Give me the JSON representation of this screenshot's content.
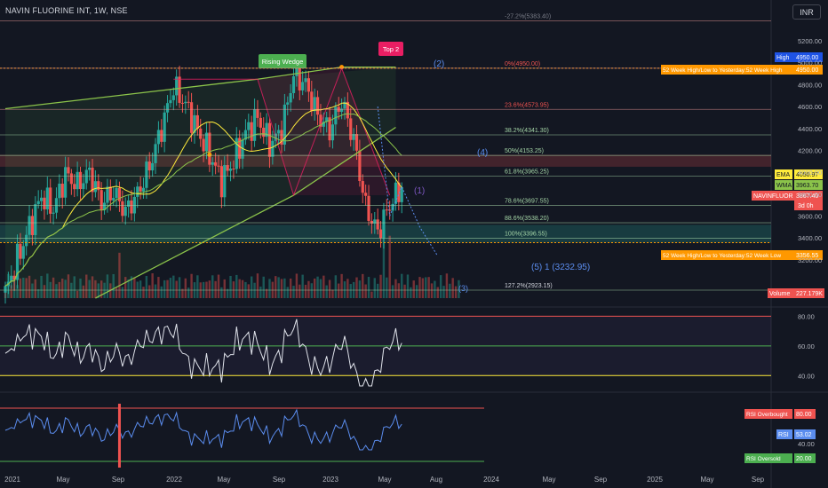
{
  "header": {
    "title": "NAVIN FLUORINE INT, 1W, NSE",
    "currency": "INR"
  },
  "colors": {
    "bg": "#131722",
    "up": "#26a69a",
    "down": "#ef5350",
    "rsi_line": "#e0e3eb",
    "rsi_blue": "#5b8def",
    "wedge": "#8bc34a",
    "fib_green": "#a5d6a7",
    "orange": "#ff9800"
  },
  "chart_data": [
    {
      "type": "candlestick",
      "title": "NAVIN FLUORINE INT, 1W, NSE",
      "ylim": [
        2850,
        5330
      ],
      "y_ticks": [
        3200,
        3400,
        3600,
        3800,
        4000,
        4200,
        4400,
        4600,
        4800,
        5000,
        5200
      ],
      "x_ticks": [
        "2021",
        "May",
        "Sep",
        "2022",
        "May",
        "Sep",
        "2023",
        "May",
        "Aug",
        "2024",
        "May",
        "Sep",
        "2025",
        "May",
        "Sep"
      ],
      "price_series": {
        "weeks": [
          0,
          4,
          8,
          12,
          16,
          20,
          24,
          28,
          32,
          36,
          40,
          44,
          48,
          52,
          56,
          60,
          64,
          68,
          72,
          76,
          80,
          84,
          88,
          92,
          96,
          100,
          104,
          108,
          112,
          116,
          120,
          124,
          128,
          132,
          136,
          140,
          144,
          148,
          152
        ],
        "close": [
          2900,
          3200,
          3500,
          3780,
          3660,
          3980,
          3880,
          4000,
          3720,
          3820,
          3640,
          3800,
          4050,
          4400,
          4780,
          4620,
          4380,
          4160,
          3920,
          4100,
          4360,
          4500,
          4250,
          4380,
          4900,
          4800,
          4520,
          4380,
          4650,
          4300,
          3680,
          3450,
          3700,
          3867.4,
          null,
          null,
          null,
          null,
          null
        ]
      },
      "levels": [
        {
          "label": "-27.2%(5383.40)",
          "price": 5383.4
        },
        {
          "label": "0%(4950.00)",
          "price": 4950.0
        },
        {
          "label": "23.6%(4573.95)",
          "price": 4573.95
        },
        {
          "label": "38.2%(4341.30)",
          "price": 4341.3
        },
        {
          "label": "50%(4153.25)",
          "price": 4153.25
        },
        {
          "label": "61.8%(3965.25)",
          "price": 3965.25
        },
        {
          "label": "78.6%(3697.55)",
          "price": 3697.55
        },
        {
          "label": "88.6%(3538.20)",
          "price": 3538.2
        },
        {
          "label": "100%(3396.55)",
          "price": 3396.55
        },
        {
          "label": "127.2%(2923.15)",
          "price": 2923.15
        }
      ],
      "patterns": {
        "rising_wedge": "Rising Wedge",
        "top": "Top 2"
      },
      "wave_labels": [
        "(2)",
        "(4)",
        "(1)",
        "(3)",
        "(5) 1 (3232.95)"
      ],
      "price_labels": {
        "high_tag": "High",
        "high_value": "4950.00",
        "week52_high_text": "52 Week High/Low to Yesterday:52 Week High",
        "week52_high_value": "4950.00",
        "ema_tag": "EMA",
        "ema_value": "4050.97",
        "wma_tag": "WMA",
        "wma_value": "3963.70",
        "symbol_tag": "NAVINFLUOR",
        "symbol_value": "3867.40",
        "countdown": "3d 0h",
        "week52_low_text": "52 Week High/Low to Yesterday:52 Week Low",
        "week52_low_value": "3356.55",
        "volume_tag": "Volume",
        "volume_value": "227.179K"
      }
    },
    {
      "type": "line",
      "name": "rsi-pane-1",
      "ylim": [
        30,
        85
      ],
      "y_ticks": [
        40,
        60,
        80
      ],
      "bands": [
        80,
        60,
        40
      ]
    },
    {
      "type": "line",
      "name": "rsi-pane-2",
      "y_ticks": [
        40
      ],
      "labels": {
        "overbought_tag": "RSI Overbought",
        "overbought_value": "80.00",
        "rsi_tag": "RSI",
        "rsi_value": "53.02",
        "oversold_tag": "RSI Oversold",
        "oversold_value": "20.00"
      }
    }
  ]
}
